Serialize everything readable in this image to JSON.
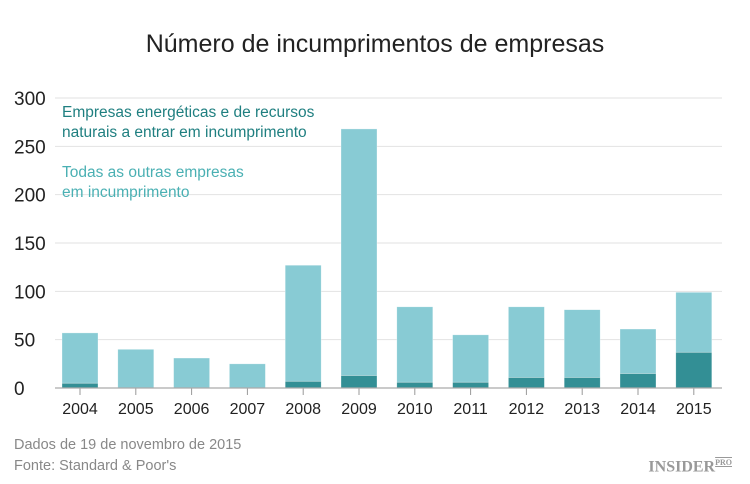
{
  "chart_data": {
    "type": "bar",
    "stacked": true,
    "title": "Número de incumprimentos de empresas",
    "categories": [
      "2004",
      "2005",
      "2006",
      "2007",
      "2008",
      "2009",
      "2010",
      "2011",
      "2012",
      "2013",
      "2014",
      "2015"
    ],
    "series": [
      {
        "name": "Empresas energéticas e de recursos naturais a entrar em incumprimento",
        "color": "#338f95",
        "values": [
          5,
          0,
          0,
          0,
          7,
          13,
          6,
          6,
          11,
          11,
          15,
          37
        ]
      },
      {
        "name": "Todas as outras empresas em incumprimento",
        "color": "#88cbd4",
        "values": [
          52,
          40,
          31,
          25,
          120,
          255,
          78,
          49,
          73,
          70,
          46,
          62
        ]
      }
    ],
    "yticks": [
      0,
      50,
      100,
      150,
      200,
      250,
      300
    ],
    "ylim": [
      0,
      300
    ],
    "grid": true,
    "legend": "top-left"
  },
  "legend": {
    "energy_line1": "Empresas energéticas e de recursos",
    "energy_line2": "naturais a entrar em incumprimento",
    "other_line1": "Todas as outras empresas",
    "other_line2": "em incumprimento"
  },
  "footer": {
    "date": "Dados de 19 de novembro de 2015",
    "source": "Fonte: Standard & Poor's",
    "logo": "INSIDER PRO"
  }
}
